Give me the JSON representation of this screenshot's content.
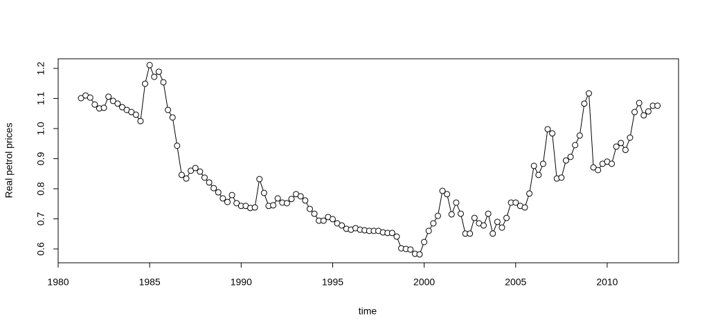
{
  "chart_data": {
    "type": "line",
    "x_label": "time",
    "y_label": "Real petrol prices",
    "x": [
      1981.25,
      1981.5,
      1981.75,
      1982,
      1982.25,
      1982.5,
      1982.75,
      1983,
      1983.25,
      1983.5,
      1983.75,
      1984,
      1984.25,
      1984.5,
      1984.75,
      1985,
      1985.25,
      1985.5,
      1985.75,
      1986,
      1986.25,
      1986.5,
      1986.75,
      1987,
      1987.25,
      1987.5,
      1987.75,
      1988,
      1988.25,
      1988.5,
      1988.75,
      1989,
      1989.25,
      1989.5,
      1989.75,
      1990,
      1990.25,
      1990.5,
      1990.75,
      1991,
      1991.25,
      1991.5,
      1991.75,
      1992,
      1992.25,
      1992.5,
      1992.75,
      1993,
      1993.25,
      1993.5,
      1993.75,
      1994,
      1994.25,
      1994.5,
      1994.75,
      1995,
      1995.25,
      1995.5,
      1995.75,
      1996,
      1996.25,
      1996.5,
      1996.75,
      1997,
      1997.25,
      1997.5,
      1997.75,
      1998,
      1998.25,
      1998.5,
      1998.75,
      1999,
      1999.25,
      1999.5,
      1999.75,
      2000,
      2000.25,
      2000.5,
      2000.75,
      2001,
      2001.25,
      2001.5,
      2001.75,
      2002,
      2002.25,
      2002.5,
      2002.75,
      2003,
      2003.25,
      2003.5,
      2003.75,
      2004,
      2004.25,
      2004.5,
      2004.75,
      2005,
      2005.25,
      2005.5,
      2005.75,
      2006,
      2006.25,
      2006.5,
      2006.75,
      2007,
      2007.25,
      2007.5,
      2007.75,
      2008,
      2008.25,
      2008.5,
      2008.75,
      2009,
      2009.25,
      2009.5,
      2009.75,
      2010,
      2010.25,
      2010.5,
      2010.75,
      2011,
      2011.25,
      2011.5,
      2011.75,
      2012,
      2012.25,
      2012.5,
      2012.75
    ],
    "series": [
      {
        "color": "#000000",
        "values": [
          1.101,
          1.11,
          1.103,
          1.08,
          1.067,
          1.069,
          1.106,
          1.092,
          1.083,
          1.071,
          1.062,
          1.055,
          1.046,
          1.025,
          1.149,
          1.211,
          1.172,
          1.189,
          1.154,
          1.062,
          1.037,
          0.943,
          0.846,
          0.834,
          0.86,
          0.869,
          0.857,
          0.837,
          0.821,
          0.802,
          0.788,
          0.768,
          0.756,
          0.779,
          0.752,
          0.743,
          0.743,
          0.736,
          0.738,
          0.832,
          0.786,
          0.743,
          0.745,
          0.768,
          0.754,
          0.752,
          0.766,
          0.782,
          0.775,
          0.761,
          0.733,
          0.717,
          0.694,
          0.694,
          0.706,
          0.699,
          0.685,
          0.678,
          0.667,
          0.664,
          0.669,
          0.664,
          0.662,
          0.66,
          0.66,
          0.66,
          0.655,
          0.653,
          0.653,
          0.641,
          0.602,
          0.6,
          0.598,
          0.584,
          0.582,
          0.623,
          0.66,
          0.685,
          0.71,
          0.793,
          0.782,
          0.715,
          0.754,
          0.717,
          0.651,
          0.651,
          0.703,
          0.685,
          0.678,
          0.717,
          0.651,
          0.69,
          0.671,
          0.703,
          0.754,
          0.754,
          0.743,
          0.738,
          0.784,
          0.876,
          0.846,
          0.883,
          0.998,
          0.984,
          0.834,
          0.837,
          0.894,
          0.906,
          0.945,
          0.977,
          1.083,
          1.117,
          0.871,
          0.862,
          0.883,
          0.89,
          0.883,
          0.94,
          0.952,
          0.929,
          0.97,
          1.055,
          1.085,
          1.044,
          1.057,
          1.076,
          1.076
        ]
      }
    ],
    "xlim": [
      1980,
      2013.9
    ],
    "xticks": [
      1980,
      1985,
      1990,
      1995,
      2000,
      2005,
      2010
    ],
    "ylim": [
      0.554,
      1.232
    ],
    "yticks": [
      0.6,
      0.7,
      0.8,
      0.9,
      {
        "value": 1.0,
        "label": "1.0"
      },
      1.1,
      1.2
    ]
  }
}
